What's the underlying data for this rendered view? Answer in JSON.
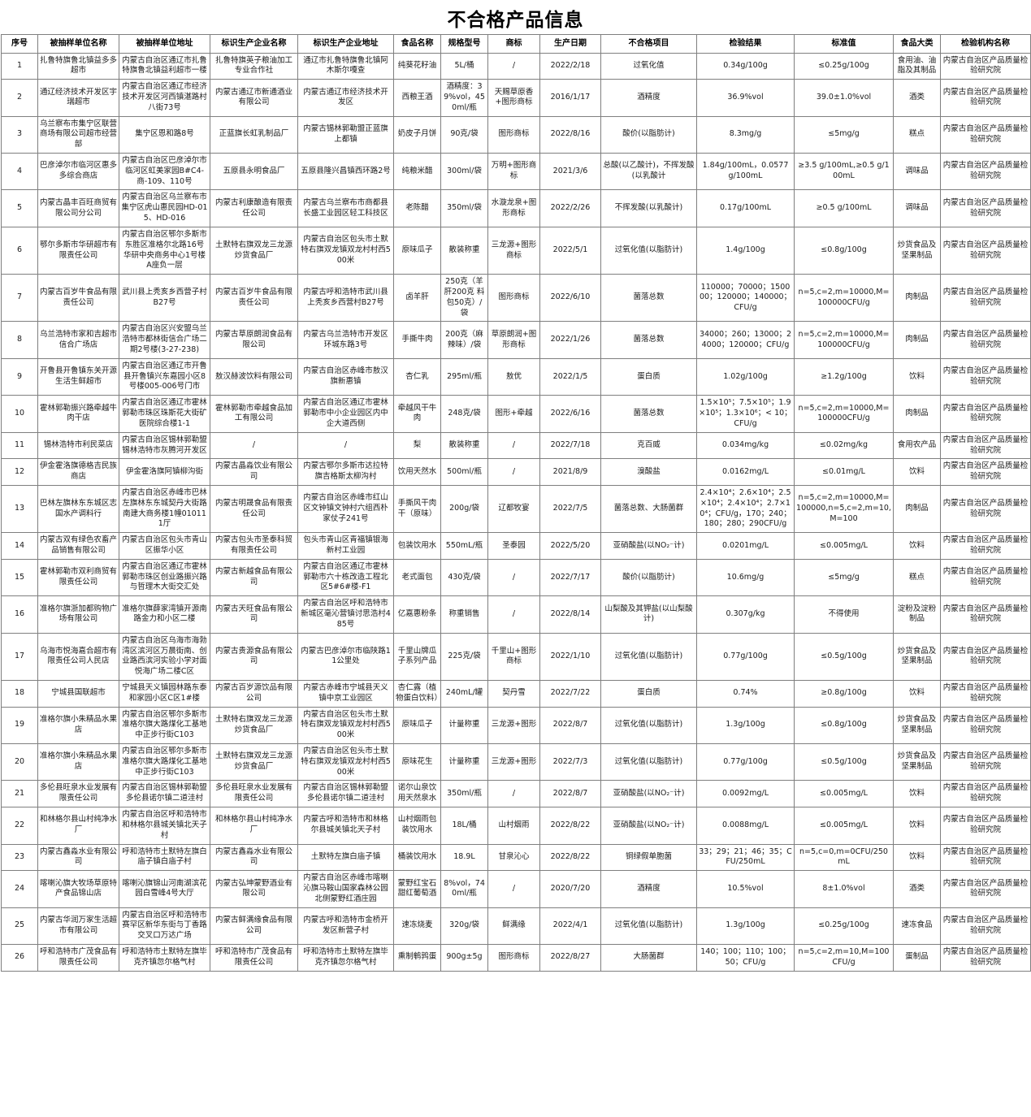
{
  "title": "不合格产品信息",
  "table": {
    "columns": [
      "序号",
      "被抽样单位名称",
      "被抽样单位地址",
      "标识生产企业名称",
      "标识生产企业地址",
      "食品名称",
      "规格型号",
      "商标",
      "生产日期",
      "不合格项目",
      "检验结果",
      "标准值",
      "食品大类",
      "检验机构名称"
    ],
    "rows": [
      [
        "1",
        "扎鲁特旗鲁北镇益多多超市",
        "内蒙古自治区通辽市扎鲁特旗鲁北镇益利超市一楼",
        "扎鲁特旗英子粮油加工专业合作社",
        "通辽市扎鲁特旗鲁北镇阿木斯尔嘎查",
        "纯葵花籽油",
        "5L/桶",
        "/",
        "2022/2/18",
        "过氧化值",
        "0.34g/100g",
        "≤0.25g/100g",
        "食用油、油脂及其制品",
        "内蒙古自治区产品质量检验研究院"
      ],
      [
        "2",
        "通辽经济技术开发区宇瑞超市",
        "内蒙古自治区通辽市经济技术开发区河西镇湛路村八街73号",
        "内蒙古通辽市新通酒业有限公司",
        "内蒙古通辽市经济技术开发区",
        "西粮王酒",
        "酒精度：39%vol，450ml/瓶",
        "天赐草原香+图形商标",
        "2016/1/17",
        "酒精度",
        "36.9%vol",
        "39.0±1.0%vol",
        "酒类",
        "内蒙古自治区产品质量检验研究院"
      ],
      [
        "3",
        "乌兰察布市集宁区联营商场有限公司超市经营部",
        "集宁区恩和路8号",
        "正蓝旗长虹乳制品厂",
        "内蒙古锡林郭勒盟正蓝旗上都镇",
        "奶皮子月饼",
        "90克/袋",
        "图形商标",
        "2022/8/16",
        "酸价(以脂肪计)",
        "8.3mg/g",
        "≤5mg/g",
        "糕点",
        "内蒙古自治区产品质量检验研究院"
      ],
      [
        "4",
        "巴彦淖尔市临河区惠多多综合商店",
        "内蒙古自治区巴彦淖尔市临河区虹美家园B#C4-商-109、110号",
        "五原县永明食品厂",
        "五原县隆兴昌镇西环路2号",
        "纯粮米醋",
        "300ml/袋",
        "万明+图形商标",
        "2021/3/6",
        "总酸(以乙酸计)，不挥发酸(以乳酸计",
        "1.84g/100mL，0.0577g/100mL",
        "≥3.5 g/100mL,≥0.5 g/100mL",
        "调味品",
        "内蒙古自治区产品质量检验研究院"
      ],
      [
        "5",
        "内蒙古晶丰百旺商贸有限公司分公司",
        "内蒙古自治区乌兰察布市集宁区虎山惠民园HD-015、HD-016",
        "内蒙古利康酿造有限责任公司",
        "内蒙古乌兰察布市商都县长盛工业园区轻工科技区",
        "老陈醋",
        "350ml/袋",
        "水漩龙泉+图形商标",
        "2022/2/26",
        "不挥发酸(以乳酸计)",
        "0.17g/100mL",
        "≥0.5 g/100mL",
        "调味品",
        "内蒙古自治区产品质量检验研究院"
      ],
      [
        "6",
        "鄂尔多斯市华研超市有限责任公司",
        "内蒙古自治区鄂尔多斯市东胜区准格尔北路16号华研中央商务中心1号楼A座负一层",
        "土默特右旗双龙三龙源炒货食品厂",
        "内蒙古自治区包头市土默特右旗双龙镇双龙村村西500米",
        "原味瓜子",
        "散装称重",
        "三龙源+图形商标",
        "2022/5/1",
        "过氧化值(以脂肪计)",
        "1.4g/100g",
        "≤0.8g/100g",
        "炒货食品及坚果制品",
        "内蒙古自治区产品质量检验研究院"
      ],
      [
        "7",
        "内蒙古百岁牛食品有限责任公司",
        "武川县上秃亥乡西营子村B27号",
        "内蒙古百岁牛食品有限责任公司",
        "内蒙古呼和浩特市武川县上秃亥乡西营村B27号",
        "卤羊肝",
        "250克（羊肝200克 料包50克）/袋",
        "图形商标",
        "2022/6/10",
        "菌落总数",
        "110000；70000；150000；120000；140000；CFU/g",
        "n=5,c=2,m=10000,M=100000CFU/g",
        "肉制品",
        "内蒙古自治区产品质量检验研究院"
      ],
      [
        "8",
        "乌兰浩特市家和吉超市信合广场店",
        "内蒙古自治区兴安盟乌兰浩特市都林街信合广场二期2号楼(3-27-238)",
        "内蒙古草原朗润食品有限公司",
        "内蒙古乌兰浩特市开发区环城东路3号",
        "手撕牛肉",
        "200克（麻辣味）/袋",
        "草原朗润+图形商标",
        "2022/1/26",
        "菌落总数",
        "34000；260；13000；24000；120000；CFU/g",
        "n=5,c=2,m=10000,M=100000CFU/g",
        "肉制品",
        "内蒙古自治区产品质量检验研究院"
      ],
      [
        "9",
        "开鲁县开鲁镇东关开源生活生鲜超市",
        "内蒙古自治区通辽市开鲁县开鲁镇兴东嘉园小区8号楼005-006号门市",
        "敖汉赫波饮料有限公司",
        "内蒙古自治区赤峰市敖汉旗新惠镇",
        "杏仁乳",
        "295ml/瓶",
        "敖优",
        "2022/1/5",
        "蛋白质",
        "1.02g/100g",
        "≥1.2g/100g",
        "饮料",
        "内蒙古自治区产品质量检验研究院"
      ],
      [
        "10",
        "霍林郭勒振兴路牵越牛肉干店",
        "内蒙古自治区通辽市霍林郭勒市珠区珠斯花大街矿医院综合楼1-1",
        "霍林郭勒市牵越食品加工有限公司",
        "内蒙古自治区通辽市霍林郭勒市中小企业园区内中企大道西侧",
        "牵越风干牛肉",
        "248克/袋",
        "图形+牵越",
        "2022/6/16",
        "菌落总数",
        "1.5×10⁵；7.5×10⁵；1.9×10⁵；1.3×10⁶；< 10；CFU/g",
        "n=5,c=2,m=10000,M=100000CFU/g",
        "肉制品",
        "内蒙古自治区产品质量检验研究院"
      ],
      [
        "11",
        "锡林浩特市利民菜店",
        "内蒙古自治区锡林郭勒盟锡林浩特市灰腾河开发区",
        "/",
        "/",
        "梨",
        "散装称重",
        "/",
        "2022/7/18",
        "克百威",
        "0.034mg/kg",
        "≤0.02mg/kg",
        "食用农产品",
        "内蒙古自治区产品质量检验研究院"
      ],
      [
        "12",
        "伊金霍洛旗德格吉民族商店",
        "伊金霍洛旗阿镇柳沟街",
        "内蒙古晶淼饮业有限公司",
        "内蒙古鄂尔多斯市达拉特旗吉格斯太柳沟村",
        "饮用天然水",
        "500ml/瓶",
        "/",
        "2021/8/9",
        "溴酸盐",
        "0.0162mg/L",
        "≤0.01mg/L",
        "饮料",
        "内蒙古自治区产品质量检验研究院"
      ],
      [
        "13",
        "巴林左旗林东东城区志国水产调料行",
        "内蒙古自治区赤峰市巴林左旗林东东城契丹大街路南建大商务楼1幢010111厅",
        "内蒙古明晟食品有限责任公司",
        "内蒙古自治区赤峰市红山区文钟镇文钟村六组西朴家仗子241号",
        "手撕风干肉干（原味）",
        "200g/袋",
        "辽都牧宴",
        "2022/7/5",
        "菌落总数、大肠菌群",
        "2.4×10⁴；2.6×10⁴；2.5×10⁴；2.4×10⁴；2.7×10⁴；CFU/g，170；240；180；280；290CFU/g",
        "n=5,c=2,m=10000,M=100000,n=5,c=2,m=10,M=100",
        "肉制品",
        "内蒙古自治区产品质量检验研究院"
      ],
      [
        "14",
        "内蒙古双有绿色农畜产品销售有限公司",
        "内蒙古自治区包头市青山区振华小区",
        "内蒙古包头市圣泰科贸有限责任公司",
        "包头市青山区青福镇银海新村工业园",
        "包装饮用水",
        "550mL/瓶",
        "圣泰园",
        "2022/5/20",
        "亚硝酸盐(以NO₂⁻计)",
        "0.0201mg/L",
        "≤0.005mg/L",
        "饮料",
        "内蒙古自治区产品质量检验研究院"
      ],
      [
        "15",
        "霍林郭勒市双利商贸有限责任公司",
        "内蒙古自治区通辽市霍林郭勒市珠区创业路振兴路与哲理木大街交汇处",
        "内蒙古新越食品有限公司",
        "内蒙古自治区通辽市霍林郭勒市六十栋改造工程北区5#6#楼-F1",
        "老式面包",
        "430克/袋",
        "/",
        "2022/7/17",
        "酸价(以脂肪计)",
        "10.6mg/g",
        "≤5mg/g",
        "糕点",
        "内蒙古自治区产品质量检验研究院"
      ],
      [
        "16",
        "准格尔旗浙加都购物广场有限公司",
        "准格尔旗薛家湾镇开源南路金力和小区二楼",
        "内蒙古天旺食品有限公司",
        "内蒙古自治区呼和浩特市新城区毫沁营镇讨思浩村485号",
        "亿嘉惠粉条",
        "称重销售",
        "/",
        "2022/8/14",
        "山梨酸及其钾盐(以山梨酸计)",
        "0.307g/kg",
        "不得使用",
        "淀粉及淀粉制品",
        "内蒙古自治区产品质量检验研究院"
      ],
      [
        "17",
        "乌海市悦海嘉合超市有限责任公司人民店",
        "内蒙古自治区乌海市海勃湾区滨河区万晨街南、创业路西滨河实验小学对面悦海广场二楼C区",
        "内蒙古贵源食品有限公司",
        "内蒙古巴彦淖尔市临陕路11公里处",
        "千里山牌瓜子系列产品",
        "225克/袋",
        "千里山+图形商标",
        "2022/1/10",
        "过氧化值(以脂肪计)",
        "0.77g/100g",
        "≤0.5g/100g",
        "炒货食品及坚果制品",
        "内蒙古自治区产品质量检验研究院"
      ],
      [
        "18",
        "宁城县国联超市",
        "宁城县天义镇园林路东泰和家园小区C区1#楼",
        "内蒙古百岁源饮品有限公司",
        "内蒙古赤峰市宁城县天义镇中京工业园区",
        "杏仁露（植物蛋白饮料）",
        "240mL/罐",
        "契丹雪",
        "2022/7/22",
        "蛋白质",
        "0.74%",
        "≥0.8g/100g",
        "饮料",
        "内蒙古自治区产品质量检验研究院"
      ],
      [
        "19",
        "准格尔旗小朱精品水果店",
        "内蒙古自治区鄂尔多斯市准格尔旗大路煤化工基地中正步行街C103",
        "土默特右旗双龙三龙源炒货食品厂",
        "内蒙古自治区包头市土默特右旗双龙镇双龙村村西500米",
        "原味瓜子",
        "计量称重",
        "三龙源+图形",
        "2022/8/7",
        "过氧化值(以脂肪计)",
        "1.3g/100g",
        "≤0.8g/100g",
        "炒货食品及坚果制品",
        "内蒙古自治区产品质量检验研究院"
      ],
      [
        "20",
        "准格尔旗小朱精品水果店",
        "内蒙古自治区鄂尔多斯市准格尔旗大路煤化工基地中正步行街C103",
        "土默特右旗双龙三龙源炒货食品厂",
        "内蒙古自治区包头市土默特右旗双龙镇双龙村村西500米",
        "原味花生",
        "计量称重",
        "三龙源+图形",
        "2022/7/3",
        "过氧化值(以脂肪计)",
        "0.77g/100g",
        "≤0.5g/100g",
        "炒货食品及坚果制品",
        "内蒙古自治区产品质量检验研究院"
      ],
      [
        "21",
        "多伦县旺泉水业发展有限责任公司",
        "内蒙古自治区锡林郭勒盟多伦县诺尔镇二道洼村",
        "多伦县旺泉水业发展有限责任公司",
        "内蒙古自治区锡林郭勒盟多伦县诺尔镇二道洼村",
        "诺尔山泉饮用天然泉水",
        "350ml/瓶",
        "/",
        "2022/8/7",
        "亚硝酸盐(以NO₂⁻计)",
        "0.0092mg/L",
        "≤0.005mg/L",
        "饮料",
        "内蒙古自治区产品质量检验研究院"
      ],
      [
        "22",
        "和林格尔县山村纯净水厂",
        "内蒙古自治区呼和浩特市和林格尔县城关镇北天子村",
        "和林格尔县山村纯净水厂",
        "内蒙古呼和浩特市和林格尔县城关镇北天子村",
        "山村烟雨包装饮用水",
        "18L/桶",
        "山村烟雨",
        "2022/8/22",
        "亚硝酸盐(以NO₂⁻计)",
        "0.0088mg/L",
        "≤0.005mg/L",
        "饮料",
        "内蒙古自治区产品质量检验研究院"
      ],
      [
        "23",
        "内蒙古鑫淼水业有限公司",
        "呼和浩特市土默特左旗白庙子镇白庙子村",
        "内蒙古鑫淼水业有限公司",
        "土默特左旗白庙子镇",
        "桶装饮用水",
        "18.9L",
        "甘泉沁心",
        "2022/8/22",
        "铜绿假单胞菌",
        "33；29；21；46；35；CFU/250mL",
        "n=5,c=0,m=0CFU/250mL",
        "饮料",
        "内蒙古自治区产品质量检验研究院"
      ],
      [
        "24",
        "喀喇沁旗大牧场草原特产食品锦山店",
        "喀喇沁旗锦山河南湖滨花园白雪峰4号大厅",
        "内蒙古弘坤蒙野酒业有限公司",
        "内蒙古自治区赤峰市喀喇沁旗马鞍山国家森林公园北侧蒙野红酒庄园",
        "蒙野红宝石甜红葡萄酒",
        "8%vol，740ml/瓶",
        "/",
        "2020/7/20",
        "酒精度",
        "10.5%vol",
        "8±1.0%vol",
        "酒类",
        "内蒙古自治区产品质量检验研究院"
      ],
      [
        "25",
        "内蒙古华润万家生活超市有限公司",
        "内蒙古自治区呼和浩特市赛罕区新华东街与丁香路交叉口万达广场",
        "内蒙古鲜满缘食品有限公司",
        "内蒙古呼和浩特市金桥开发区新营子村",
        "速冻烧麦",
        "320g/袋",
        "鲜满缘",
        "2022/4/1",
        "过氧化值(以脂肪计)",
        "1.3g/100g",
        "≤0.25g/100g",
        "速冻食品",
        "内蒙古自治区产品质量检验研究院"
      ],
      [
        "26",
        "呼和浩特市广茂食品有限责任公司",
        "呼和浩特市土默特左旗毕克齐镇忽尔格气村",
        "呼和浩特市广茂食品有限责任公司",
        "呼和浩特市土默特左旗毕克齐镇忽尔格气村",
        "熏制鹌鹑蛋",
        "900g±5g",
        "图形商标",
        "2022/8/27",
        "大肠菌群",
        "140；100；110；100；50；CFU/g",
        "n=5,c=2,m=10,M=100 CFU/g",
        "蛋制品",
        "内蒙古自治区产品质量检验研究院"
      ]
    ]
  }
}
